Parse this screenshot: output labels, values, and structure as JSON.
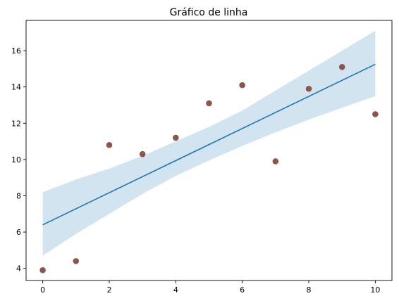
{
  "chart_data": {
    "type": "scatter",
    "title": "Gráfico de linha",
    "xlabel": "",
    "ylabel": "",
    "xlim": [
      -0.5,
      10.5
    ],
    "ylim": [
      3.33,
      17.67
    ],
    "xticks": [
      0,
      2,
      4,
      6,
      8,
      10
    ],
    "yticks": [
      4,
      6,
      8,
      10,
      12,
      14,
      16
    ],
    "grid": false,
    "legend": "none",
    "points": {
      "x": [
        0,
        1,
        2,
        3,
        4,
        5,
        6,
        7,
        8,
        9,
        10
      ],
      "y": [
        3.9,
        4.4,
        10.8,
        10.3,
        11.2,
        13.1,
        14.1,
        9.9,
        13.9,
        15.1,
        12.5
      ],
      "color": "#8c564b"
    },
    "fit_line": {
      "x": [
        0,
        10
      ],
      "y": [
        6.4,
        15.25
      ],
      "color": "#1f77b4"
    },
    "confidence_band": {
      "x": [
        0,
        1,
        2,
        3,
        4,
        5,
        6,
        7,
        8,
        9,
        10
      ],
      "lower": [
        4.7,
        5.9,
        7.0,
        8.1,
        9.1,
        9.95,
        10.75,
        11.5,
        12.2,
        12.85,
        13.5
      ],
      "upper": [
        8.2,
        8.9,
        9.5,
        10.2,
        11.0,
        11.8,
        12.7,
        13.8,
        14.9,
        16.0,
        17.1
      ],
      "color": "#1f77b4",
      "opacity": 0.2
    }
  }
}
